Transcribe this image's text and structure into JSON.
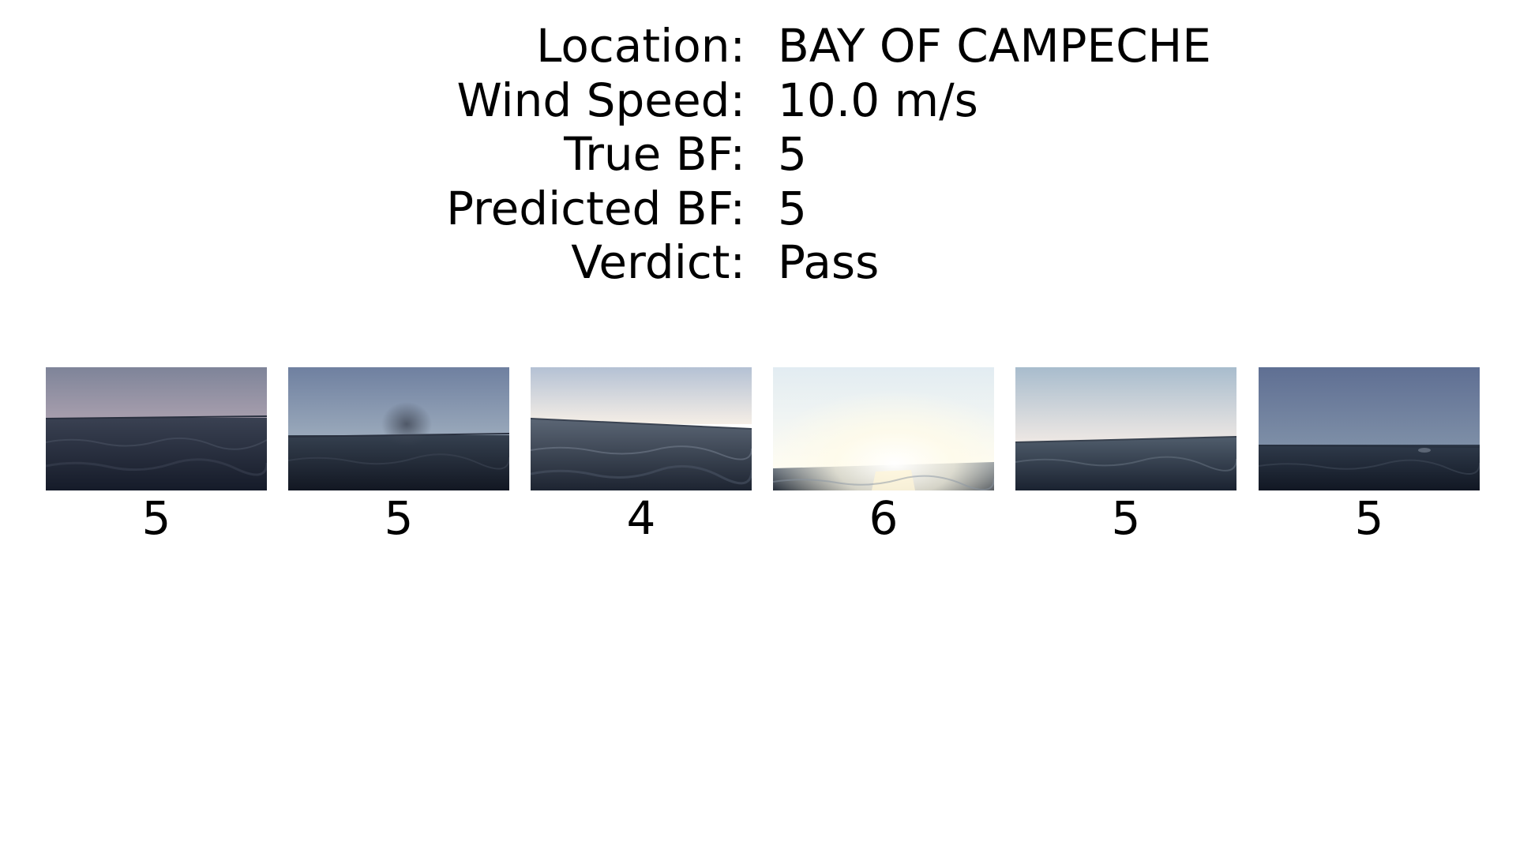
{
  "info": [
    {
      "label": "Location:",
      "value": "BAY OF CAMPECHE"
    },
    {
      "label": "Wind Speed:",
      "value": "10.0 m/s"
    },
    {
      "label": "True BF:",
      "value": "5"
    },
    {
      "label": "Predicted BF:",
      "value": "5"
    },
    {
      "label": "Verdict:",
      "value": "Pass"
    }
  ],
  "thumbnails": [
    {
      "caption": "5",
      "scene": "overcast-sea",
      "sky_top": "#7e8499",
      "sky_bottom": "#a79ead",
      "sea_top": "#3a4152",
      "sea_bottom": "#151b29"
    },
    {
      "caption": "5",
      "scene": "hazy-sea",
      "sky_top": "#6f80a0",
      "sky_bottom": "#9aa9bb",
      "sea_top": "#35404f",
      "sea_bottom": "#121722"
    },
    {
      "caption": "4",
      "scene": "bright-sky-sea",
      "sky_top": "#b4c1d4",
      "sky_bottom": "#f5eee6",
      "sea_top": "#5b6675",
      "sea_bottom": "#1d2431"
    },
    {
      "caption": "6",
      "scene": "sun-glare-sea",
      "sky_top": "#e2ecf2",
      "sky_bottom": "#fffdf4",
      "sea_top": "#6b7684",
      "sea_bottom": "#222a36"
    },
    {
      "caption": "5",
      "scene": "pale-sky-sea",
      "sky_top": "#a8bccd",
      "sky_bottom": "#eee8e4",
      "sea_top": "#505d6c",
      "sea_bottom": "#1a2230"
    },
    {
      "caption": "5",
      "scene": "blue-overcast-sea",
      "sky_top": "#5f6f93",
      "sky_bottom": "#7e8fa7",
      "sea_top": "#2f3a4a",
      "sea_bottom": "#111723"
    }
  ]
}
